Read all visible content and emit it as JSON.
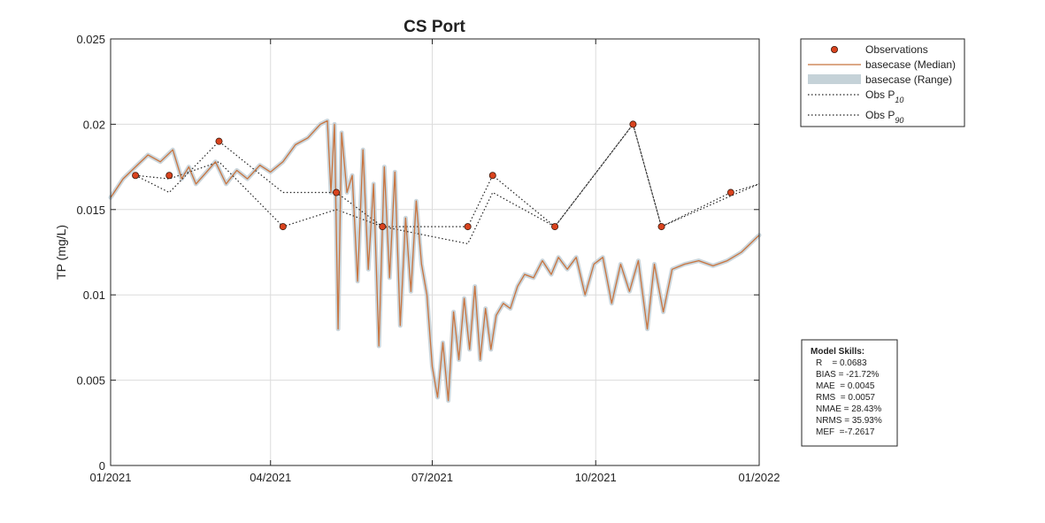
{
  "chart_data": {
    "type": "line",
    "title": "CS Port",
    "xlabel": "",
    "ylabel": "TP (mg/L)",
    "xlim": [
      "2021-01-01",
      "2022-01-01"
    ],
    "ylim": [
      0,
      0.025
    ],
    "x_ticks": [
      "01/2021",
      "04/2021",
      "07/2021",
      "10/2021",
      "01/2022"
    ],
    "y_ticks": [
      "0",
      "0.005",
      "0.01",
      "0.015",
      "0.02",
      "0.025"
    ],
    "grid": true,
    "legend_position": "outside-top-right",
    "legend": [
      {
        "label": "Observations",
        "sub": ""
      },
      {
        "label": "basecase (Median)",
        "sub": ""
      },
      {
        "label": "basecase (Range)",
        "sub": ""
      },
      {
        "label": "Obs P",
        "sub": "10"
      },
      {
        "label": "Obs P",
        "sub": "90"
      }
    ],
    "colors": {
      "observations": "#d9431e",
      "median": "#c8743f",
      "range": "#c5d2d8",
      "grid": "#dcdcdc",
      "percentile": "#222222"
    },
    "observations": {
      "x": [
        "2021-01-15",
        "2021-02-03",
        "2021-03-03",
        "2021-04-08",
        "2021-05-08",
        "2021-06-03",
        "2021-07-21",
        "2021-08-04",
        "2021-09-08",
        "2021-10-22",
        "2021-11-07",
        "2021-12-16"
      ],
      "y": [
        0.017,
        0.017,
        0.019,
        0.014,
        0.016,
        0.014,
        0.014,
        0.017,
        0.014,
        0.02,
        0.014,
        0.016
      ]
    },
    "obs_p10": {
      "x": [
        "2021-01-15",
        "2021-02-03",
        "2021-03-03",
        "2021-04-08",
        "2021-05-08",
        "2021-06-03",
        "2021-07-21",
        "2021-08-04",
        "2021-09-08",
        "2021-10-22",
        "2021-11-07",
        "2021-12-16",
        "2022-01-01"
      ],
      "y": [
        0.017,
        0.0168,
        0.0178,
        0.014,
        0.015,
        0.014,
        0.013,
        0.016,
        0.014,
        0.02,
        0.014,
        0.0158,
        0.0165
      ]
    },
    "obs_p90": {
      "x": [
        "2021-01-15",
        "2021-02-03",
        "2021-03-03",
        "2021-04-08",
        "2021-05-08",
        "2021-06-03",
        "2021-07-21",
        "2021-08-04",
        "2021-09-08",
        "2021-10-22",
        "2021-11-07",
        "2021-12-16",
        "2022-01-01"
      ],
      "y": [
        0.017,
        0.016,
        0.019,
        0.016,
        0.016,
        0.014,
        0.014,
        0.017,
        0.014,
        0.02,
        0.014,
        0.016,
        0.0165
      ]
    },
    "median": {
      "x": [
        "2021-01-01",
        "2021-01-08",
        "2021-01-15",
        "2021-01-22",
        "2021-01-29",
        "2021-02-05",
        "2021-02-10",
        "2021-02-14",
        "2021-02-18",
        "2021-02-24",
        "2021-03-01",
        "2021-03-07",
        "2021-03-13",
        "2021-03-19",
        "2021-03-26",
        "2021-04-01",
        "2021-04-08",
        "2021-04-15",
        "2021-04-22",
        "2021-04-29",
        "2021-05-03",
        "2021-05-05",
        "2021-05-07",
        "2021-05-09",
        "2021-05-11",
        "2021-05-14",
        "2021-05-17",
        "2021-05-20",
        "2021-05-23",
        "2021-05-26",
        "2021-05-29",
        "2021-06-01",
        "2021-06-04",
        "2021-06-07",
        "2021-06-10",
        "2021-06-13",
        "2021-06-16",
        "2021-06-19",
        "2021-06-22",
        "2021-06-25",
        "2021-06-28",
        "2021-07-01",
        "2021-07-04",
        "2021-07-07",
        "2021-07-10",
        "2021-07-13",
        "2021-07-16",
        "2021-07-19",
        "2021-07-22",
        "2021-07-25",
        "2021-07-28",
        "2021-07-31",
        "2021-08-03",
        "2021-08-06",
        "2021-08-10",
        "2021-08-14",
        "2021-08-18",
        "2021-08-22",
        "2021-08-27",
        "2021-09-01",
        "2021-09-06",
        "2021-09-10",
        "2021-09-15",
        "2021-09-20",
        "2021-09-25",
        "2021-09-30",
        "2021-10-05",
        "2021-10-10",
        "2021-10-15",
        "2021-10-20",
        "2021-10-25",
        "2021-10-30",
        "2021-11-03",
        "2021-11-08",
        "2021-11-13",
        "2021-11-20",
        "2021-11-28",
        "2021-12-06",
        "2021-12-14",
        "2021-12-22",
        "2022-01-01"
      ],
      "y": [
        0.0157,
        0.0168,
        0.0175,
        0.0182,
        0.0178,
        0.0185,
        0.0168,
        0.0175,
        0.0165,
        0.0172,
        0.0178,
        0.0165,
        0.0173,
        0.0168,
        0.0176,
        0.0172,
        0.0178,
        0.0188,
        0.0192,
        0.02,
        0.0202,
        0.016,
        0.02,
        0.008,
        0.0195,
        0.016,
        0.017,
        0.0108,
        0.0185,
        0.0115,
        0.0165,
        0.007,
        0.0175,
        0.011,
        0.0172,
        0.0082,
        0.0145,
        0.0102,
        0.0155,
        0.0118,
        0.01,
        0.0058,
        0.004,
        0.0072,
        0.0038,
        0.009,
        0.0062,
        0.0098,
        0.0068,
        0.0105,
        0.0062,
        0.0092,
        0.0068,
        0.0088,
        0.0095,
        0.0092,
        0.0105,
        0.0112,
        0.011,
        0.012,
        0.0112,
        0.0122,
        0.0115,
        0.0122,
        0.01,
        0.0118,
        0.0122,
        0.0095,
        0.0118,
        0.0102,
        0.012,
        0.008,
        0.0118,
        0.009,
        0.0115,
        0.0118,
        0.012,
        0.0117,
        0.012,
        0.0125,
        0.0135
      ]
    },
    "skills": {
      "title": "Model Skills:",
      "lines": [
        "R    = 0.0683",
        "BIAS = -21.72%",
        "MAE  = 0.0045",
        "RMS  = 0.0057",
        "NMAE = 28.43%",
        "NRMS = 35.93%",
        "MEF  =-7.2617"
      ]
    }
  }
}
